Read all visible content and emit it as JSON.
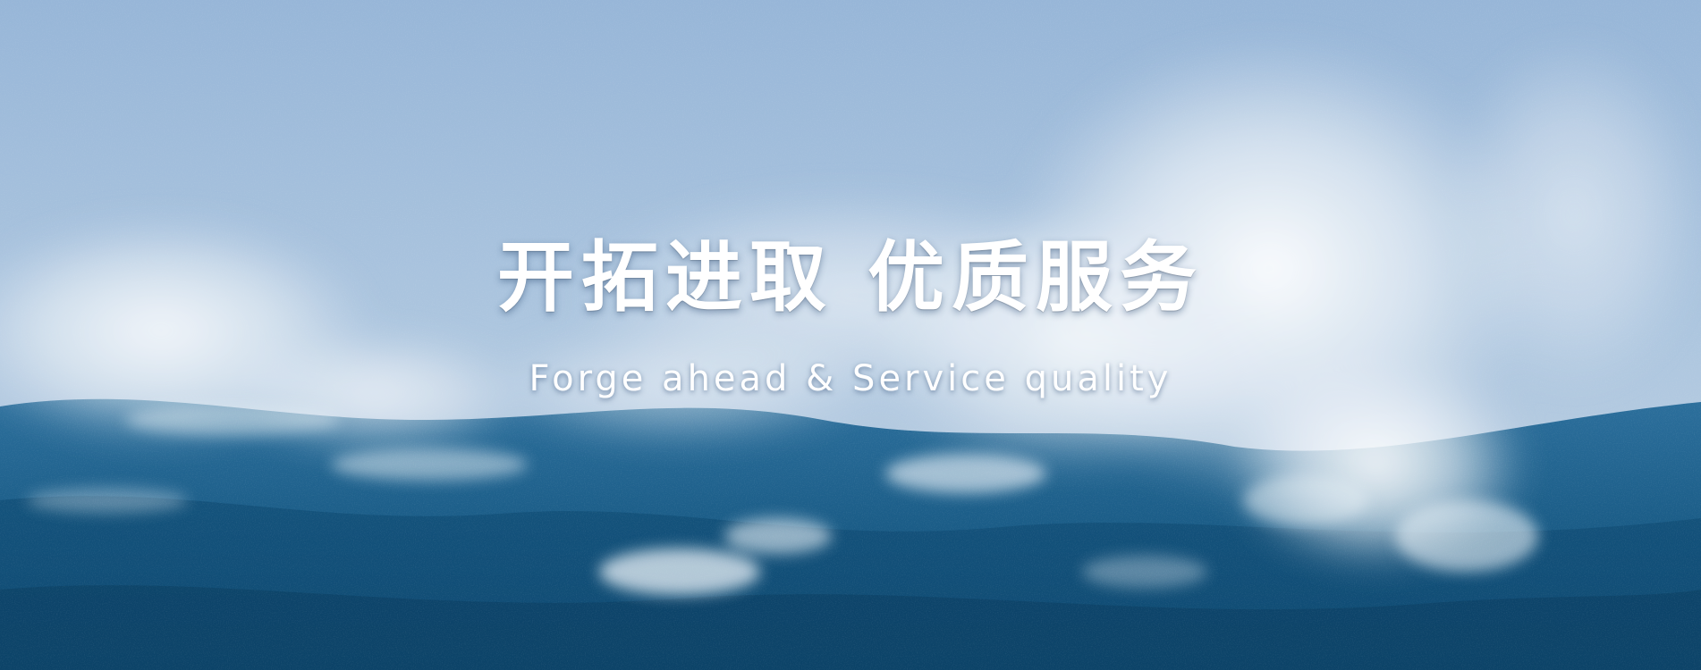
{
  "banner": {
    "headline": "开拓进取 优质服务",
    "subtitle": "Forge ahead & Service quality"
  },
  "colors": {
    "sky": "#a9c3df",
    "spray": "#e8eef4",
    "ocean_deep": "#0f4c74",
    "ocean_mid": "#1f6390",
    "text": "#ffffff"
  }
}
